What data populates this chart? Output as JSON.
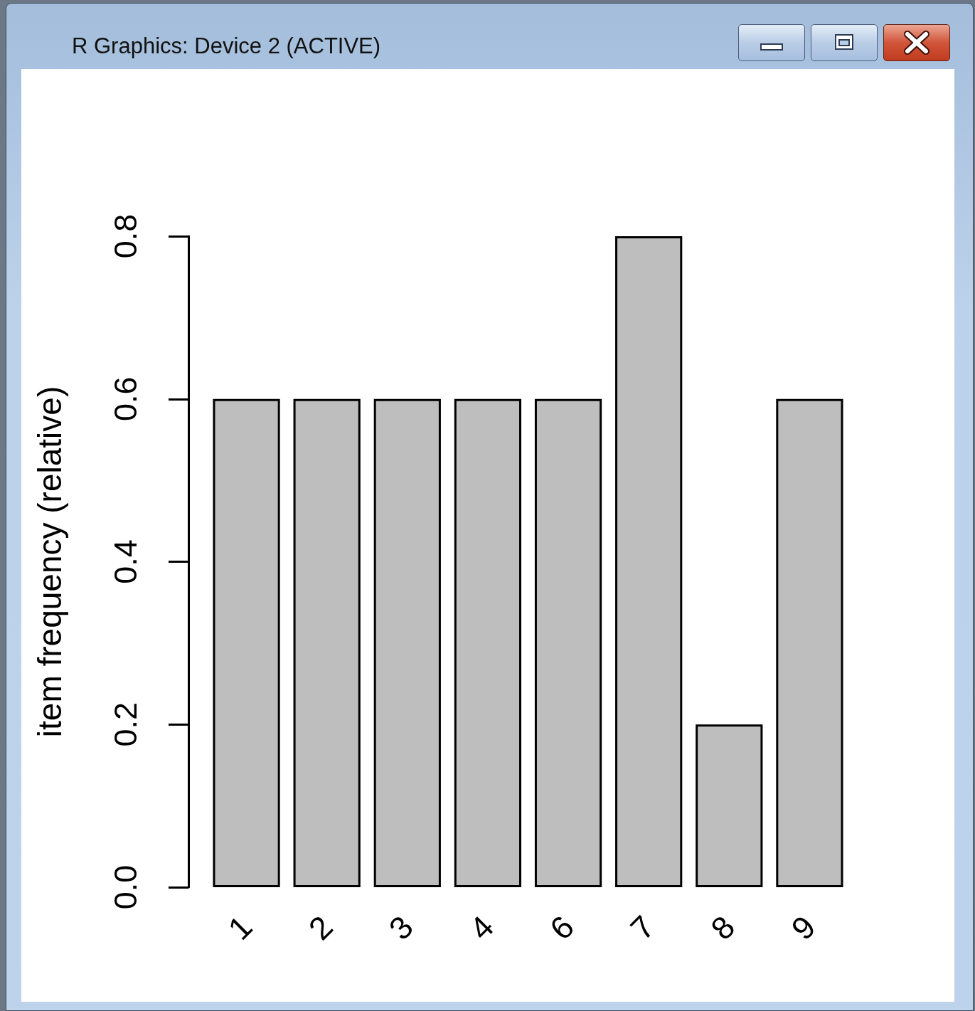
{
  "chart_data": {
    "type": "bar",
    "title": "R Graphics: Device 2 (ACTIVE)",
    "ylabel": "item frequency (relative)",
    "categories": [
      "1",
      "2",
      "3",
      "4",
      "6",
      "7",
      "8",
      "9"
    ],
    "values": [
      0.6,
      0.6,
      0.6,
      0.6,
      0.6,
      0.8,
      0.2,
      0.6
    ],
    "color": "#bebebe",
    "ylim": [
      0,
      0.8
    ],
    "yticks": [
      {
        "value": 0,
        "label": "0.0"
      },
      0.2,
      0.4,
      0.6,
      0.8
    ]
  }
}
